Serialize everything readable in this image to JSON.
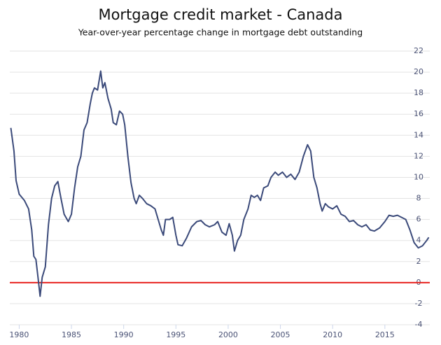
{
  "chart_data": {
    "type": "line",
    "title": "Mortgage credit market - Canada",
    "subtitle": "Year-over-year percentage change in mortgage debt outstanding",
    "x": [
      1979.2,
      1979.5,
      1979.7,
      1980.0,
      1980.5,
      1980.9,
      1981.2,
      1981.4,
      1981.6,
      1981.8,
      1982.0,
      1982.2,
      1982.5,
      1982.8,
      1983.1,
      1983.4,
      1983.7,
      1984.0,
      1984.3,
      1984.7,
      1985.0,
      1985.3,
      1985.6,
      1985.9,
      1986.2,
      1986.5,
      1986.8,
      1987.0,
      1987.2,
      1987.5,
      1987.8,
      1988.0,
      1988.2,
      1988.5,
      1988.8,
      1989.0,
      1989.3,
      1989.6,
      1989.9,
      1990.1,
      1990.4,
      1990.7,
      1991.0,
      1991.2,
      1991.5,
      1991.8,
      1992.2,
      1992.6,
      1993.0,
      1993.3,
      1993.6,
      1993.8,
      1994.0,
      1994.4,
      1994.7,
      1995.0,
      1995.2,
      1995.6,
      1996.0,
      1996.5,
      1997.0,
      1997.4,
      1997.8,
      1998.2,
      1998.7,
      1999.0,
      1999.4,
      1999.8,
      2000.1,
      2000.4,
      2000.6,
      2000.9,
      2001.2,
      2001.5,
      2001.9,
      2002.2,
      2002.5,
      2002.8,
      2003.1,
      2003.4,
      2003.8,
      2004.1,
      2004.5,
      2004.8,
      2005.2,
      2005.6,
      2006.0,
      2006.4,
      2006.8,
      2007.2,
      2007.6,
      2007.9,
      2008.2,
      2008.5,
      2008.8,
      2009.0,
      2009.3,
      2009.6,
      2010.0,
      2010.4,
      2010.8,
      2011.2,
      2011.6,
      2012.0,
      2012.4,
      2012.8,
      2013.2,
      2013.6,
      2014.0,
      2014.5,
      2015.0,
      2015.4,
      2015.8,
      2016.2,
      2016.6,
      2017.0,
      2017.4,
      2017.8,
      2018.2,
      2018.6,
      2019.0,
      2019.2
    ],
    "values": [
      14.7,
      12.5,
      9.7,
      8.4,
      7.8,
      7.0,
      5.0,
      2.5,
      2.2,
      0.5,
      -1.3,
      0.5,
      1.5,
      5.5,
      8.0,
      9.2,
      9.6,
      8.0,
      6.5,
      5.8,
      6.5,
      9.0,
      11.0,
      12.0,
      14.5,
      15.2,
      17.0,
      18.0,
      18.5,
      18.3,
      20.1,
      18.5,
      19.0,
      17.5,
      16.5,
      15.2,
      15.0,
      16.3,
      16.0,
      15.0,
      12.0,
      9.5,
      8.0,
      7.5,
      8.3,
      8.0,
      7.5,
      7.3,
      7.0,
      6.0,
      5.0,
      4.5,
      6.0,
      6.0,
      6.2,
      4.5,
      3.6,
      3.5,
      4.2,
      5.3,
      5.8,
      5.9,
      5.5,
      5.3,
      5.5,
      5.8,
      4.8,
      4.5,
      5.6,
      4.5,
      3.0,
      4.0,
      4.5,
      6.0,
      7.0,
      8.3,
      8.1,
      8.3,
      7.8,
      9.0,
      9.2,
      10.0,
      10.5,
      10.2,
      10.5,
      10.0,
      10.3,
      9.8,
      10.5,
      12.0,
      13.1,
      12.5,
      10.0,
      9.0,
      7.5,
      6.8,
      7.5,
      7.2,
      7.0,
      7.3,
      6.5,
      6.3,
      5.8,
      5.9,
      5.5,
      5.3,
      5.5,
      5.0,
      4.9,
      5.2,
      5.8,
      6.4,
      6.3,
      6.4,
      6.2,
      6.0,
      5.0,
      3.8,
      3.3,
      3.5,
      4.0,
      4.3
    ],
    "color": "#3b4a7a",
    "xlim": [
      1979.1,
      2019.3
    ],
    "xticks": [
      1980,
      1985,
      1990,
      1995,
      2000,
      2005,
      2010,
      2015
    ],
    "ylim": [
      -4,
      22
    ],
    "yticks": [
      -4,
      -2,
      0,
      2,
      4,
      6,
      8,
      10,
      12,
      14,
      16,
      18,
      20,
      22
    ],
    "grid": true,
    "reference_line": {
      "value": 0,
      "color": "#e8231f"
    }
  }
}
